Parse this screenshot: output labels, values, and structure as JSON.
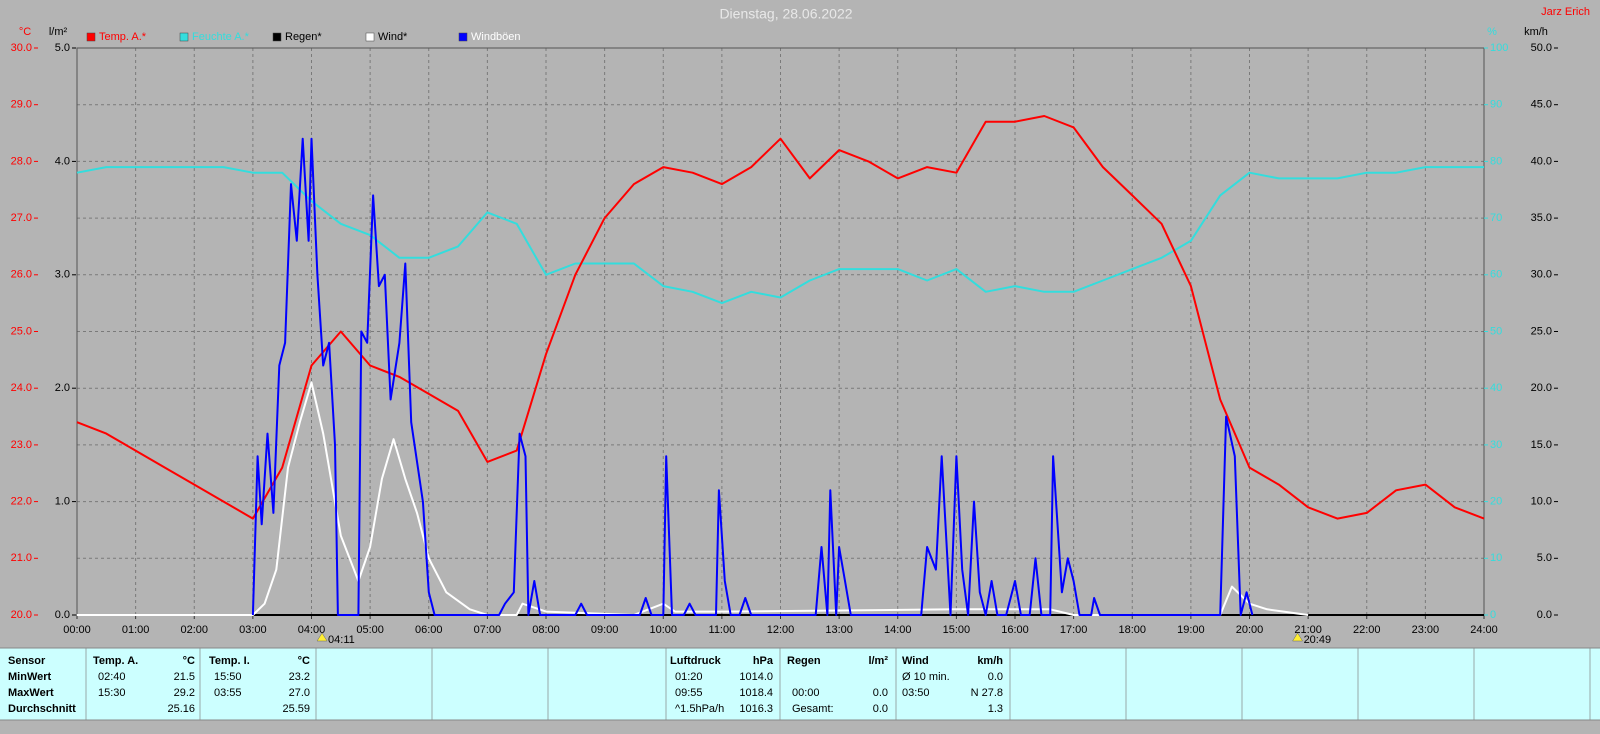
{
  "chart_data": {
    "type": "line",
    "title": "Dienstag, 28.06.2022",
    "author": "Jarz Erich",
    "y_unit": "°C",
    "y3_unit": "l/m²",
    "y4_unit": "%",
    "y2_unit": "km/h",
    "xlim": [
      0,
      24
    ],
    "xticks": [
      {
        "value": 0,
        "label": "00:00"
      },
      {
        "value": 1,
        "label": "01:00"
      },
      {
        "value": 2,
        "label": "02:00"
      },
      {
        "value": 3,
        "label": "03:00"
      },
      {
        "value": 4,
        "label": "04:00"
      },
      {
        "value": 5,
        "label": "05:00"
      },
      {
        "value": 6,
        "label": "06:00"
      },
      {
        "value": 7,
        "label": "07:00"
      },
      {
        "value": 8,
        "label": "08:00"
      },
      {
        "value": 9,
        "label": "09:00"
      },
      {
        "value": 10,
        "label": "10:00"
      },
      {
        "value": 11,
        "label": "11:00"
      },
      {
        "value": 12,
        "label": "12:00"
      },
      {
        "value": 13,
        "label": "13:00"
      },
      {
        "value": 14,
        "label": "14:00"
      },
      {
        "value": 15,
        "label": "15:00"
      },
      {
        "value": 16,
        "label": "16:00"
      },
      {
        "value": 17,
        "label": "17:00"
      },
      {
        "value": 18,
        "label": "18:00"
      },
      {
        "value": 19,
        "label": "19:00"
      },
      {
        "value": 20,
        "label": "20:00"
      },
      {
        "value": 21,
        "label": "21:00"
      },
      {
        "value": 22,
        "label": "22:00"
      },
      {
        "value": 23,
        "label": "23:00"
      },
      {
        "value": 24,
        "label": "24:00"
      }
    ],
    "ylim": [
      20,
      30
    ],
    "yticks": [
      {
        "value": 20,
        "label": "20.0"
      },
      {
        "value": 21,
        "label": "21.0"
      },
      {
        "value": 22,
        "label": "22.0"
      },
      {
        "value": 23,
        "label": "23.0"
      },
      {
        "value": 24,
        "label": "24.0"
      },
      {
        "value": 25,
        "label": "25.0"
      },
      {
        "value": 26,
        "label": "26.0"
      },
      {
        "value": 27,
        "label": "27.0"
      },
      {
        "value": 28,
        "label": "28.0"
      },
      {
        "value": 29,
        "label": "29.0"
      },
      {
        "value": 30,
        "label": "30.0"
      }
    ],
    "y3lim": [
      0,
      5
    ],
    "y3ticks": [
      {
        "value": 0,
        "label": "0.0"
      },
      {
        "value": 1,
        "label": "1.0"
      },
      {
        "value": 2,
        "label": "2.0"
      },
      {
        "value": 3,
        "label": "3.0"
      },
      {
        "value": 4,
        "label": "4.0"
      },
      {
        "value": 5,
        "label": "5.0"
      }
    ],
    "y4lim": [
      0,
      100
    ],
    "y4ticks": [
      0,
      10,
      20,
      30,
      40,
      50,
      60,
      70,
      80,
      90,
      100
    ],
    "y2lim": [
      0,
      50
    ],
    "y2ticks": [
      {
        "value": 0,
        "label": "0.0"
      },
      {
        "value": 5,
        "label": "5.0"
      },
      {
        "value": 10,
        "label": "10.0"
      },
      {
        "value": 15,
        "label": "15.0"
      },
      {
        "value": 20,
        "label": "20.0"
      },
      {
        "value": 25,
        "label": "25.0"
      },
      {
        "value": 30,
        "label": "30.0"
      },
      {
        "value": 35,
        "label": "35.0"
      },
      {
        "value": 40,
        "label": "40.0"
      },
      {
        "value": 45,
        "label": "45.0"
      },
      {
        "value": 50,
        "label": "50.0"
      }
    ],
    "grid": true,
    "x": [
      0,
      0.5,
      1,
      1.5,
      2,
      2.5,
      3,
      3.5,
      4,
      4.5,
      5,
      5.5,
      6,
      6.5,
      7,
      7.5,
      8,
      8.5,
      9,
      9.5,
      10,
      10.5,
      11,
      11.5,
      12,
      12.5,
      13,
      13.5,
      14,
      14.5,
      15,
      15.5,
      16,
      16.5,
      17,
      17.5,
      18,
      18.5,
      19,
      19.5,
      20,
      20.5,
      21,
      21.5,
      22,
      22.5,
      23,
      23.5,
      24
    ],
    "series": [
      {
        "name": "Temp. A.*",
        "color": "#ff0000",
        "axis": "y",
        "values": [
          23.4,
          23.2,
          22.9,
          22.6,
          22.3,
          22.0,
          21.7,
          22.6,
          24.4,
          25.0,
          24.4,
          24.2,
          23.9,
          23.6,
          22.7,
          22.9,
          24.6,
          26.0,
          27.0,
          27.6,
          27.9,
          27.8,
          27.6,
          27.9,
          28.4,
          27.7,
          28.2,
          28.0,
          27.7,
          27.9,
          27.8,
          28.7,
          28.7,
          28.8,
          28.6,
          27.9,
          27.4,
          26.9,
          25.8,
          23.8,
          22.6,
          22.3,
          21.9,
          21.7,
          21.8,
          22.2,
          22.3,
          21.9,
          21.7
        ]
      },
      {
        "name": "Feuchte A.*",
        "color": "#33dddd",
        "axis": "y4",
        "values": [
          78,
          79,
          79,
          79,
          79,
          79,
          78,
          78,
          73,
          69,
          67,
          63,
          63,
          65,
          71,
          69,
          60,
          62,
          62,
          62,
          58,
          57,
          55,
          57,
          56,
          59,
          61,
          61,
          61,
          59,
          61,
          57,
          58,
          57,
          57,
          59,
          61,
          63,
          66,
          74,
          78,
          77,
          77,
          77,
          78,
          78,
          79,
          79,
          79
        ]
      },
      {
        "name": "Regen*",
        "color": "#000000",
        "axis": "y3",
        "x": [
          0,
          24
        ],
        "values": [
          0,
          0
        ]
      },
      {
        "name": "Wind*",
        "color": "#ffffff",
        "axis": "y2",
        "x": [
          0,
          3,
          3.2,
          3.4,
          3.6,
          3.8,
          4.0,
          4.2,
          4.5,
          4.8,
          5.0,
          5.2,
          5.4,
          5.6,
          5.8,
          6.0,
          6.3,
          6.7,
          7.0,
          7.5,
          7.6,
          8.0,
          9.5,
          10,
          10.2,
          11,
          15,
          16.6,
          17,
          19.5,
          19.7,
          20,
          20.3,
          21
        ],
        "values": [
          0,
          0,
          1,
          4,
          13,
          17,
          20.5,
          16,
          7,
          3,
          6,
          12,
          15.5,
          12,
          9,
          5,
          2,
          0.5,
          0,
          0,
          1,
          0.3,
          0,
          1,
          0.3,
          0.3,
          0.5,
          0.5,
          0,
          0,
          2.5,
          1,
          0.5,
          0
        ]
      },
      {
        "name": "Windböen",
        "color": "#0000ff",
        "axis": "y2",
        "x": [
          3.0,
          3.08,
          3.15,
          3.25,
          3.35,
          3.45,
          3.55,
          3.65,
          3.75,
          3.85,
          3.95,
          4.0,
          4.1,
          4.2,
          4.3,
          4.4,
          4.45,
          4.8,
          4.85,
          4.95,
          5.05,
          5.15,
          5.25,
          5.35,
          5.5,
          5.6,
          5.7,
          5.9,
          6.0,
          6.1,
          7.2,
          7.3,
          7.45,
          7.55,
          7.65,
          7.7,
          7.8,
          7.9,
          8.5,
          8.6,
          8.7,
          9.6,
          9.7,
          9.8,
          10.0,
          10.05,
          10.15,
          10.35,
          10.45,
          10.55,
          10.9,
          10.95,
          11.05,
          11.15,
          11.3,
          11.4,
          11.5,
          12.6,
          12.7,
          12.8,
          12.85,
          12.95,
          13.0,
          13.1,
          13.2,
          14.4,
          14.5,
          14.65,
          14.75,
          14.9,
          15.0,
          15.1,
          15.2,
          15.3,
          15.4,
          15.5,
          15.6,
          15.7,
          15.85,
          16.0,
          16.1,
          16.25,
          16.35,
          16.45,
          16.6,
          16.65,
          16.8,
          16.9,
          17.0,
          17.1,
          17.3,
          17.35,
          17.45,
          19.5,
          19.6,
          19.75,
          19.85,
          19.95,
          20.05
        ],
        "values": [
          0,
          14,
          8,
          16,
          9,
          22,
          24,
          38,
          33,
          42,
          33,
          42,
          30,
          22,
          24,
          15,
          0,
          0,
          25,
          24,
          37,
          29,
          30,
          19,
          24,
          31,
          17,
          10,
          2,
          0,
          0,
          1,
          2,
          16,
          14,
          0,
          3,
          0,
          0,
          1,
          0,
          0,
          1.5,
          0,
          0,
          14,
          0,
          0,
          1,
          0,
          0,
          11,
          3,
          0,
          0,
          1.5,
          0,
          0,
          6,
          0,
          11,
          0,
          6,
          3,
          0,
          0,
          6,
          4,
          14,
          0,
          14,
          4,
          0,
          10,
          2,
          0,
          3,
          0,
          0,
          3,
          0,
          0,
          5,
          0,
          0,
          14,
          2,
          5,
          3,
          0,
          0,
          1.5,
          0,
          0,
          17.5,
          14,
          0,
          2,
          0
        ]
      }
    ],
    "annotations": [
      {
        "x": 4.18,
        "label": "04:11"
      },
      {
        "x": 20.82,
        "label": "20:49"
      }
    ]
  },
  "table": {
    "rows": [
      [
        "Sensor",
        "Temp. A.",
        "°C",
        "Temp. I.",
        "°C",
        "Luftdruck",
        "hPa",
        "Regen",
        "l/m²",
        "Wind",
        "km/h"
      ],
      [
        "MinWert",
        "02:40",
        "21.5",
        "15:50",
        "23.2",
        "01:20",
        "1014.0",
        null,
        null,
        "Ø 10 min.",
        "0.0"
      ],
      [
        "MaxWert",
        "15:30",
        "29.2",
        "03:55",
        "27.0",
        "09:55",
        "1018.4",
        "00:00",
        "0.0",
        "03:50",
        "N 27.8"
      ],
      [
        "Durchschnitt",
        null,
        "25.16",
        null,
        "25.59",
        "^1.5hPa/h",
        "1016.3",
        "Gesamt:",
        "0.0",
        null,
        "1.3"
      ]
    ]
  }
}
